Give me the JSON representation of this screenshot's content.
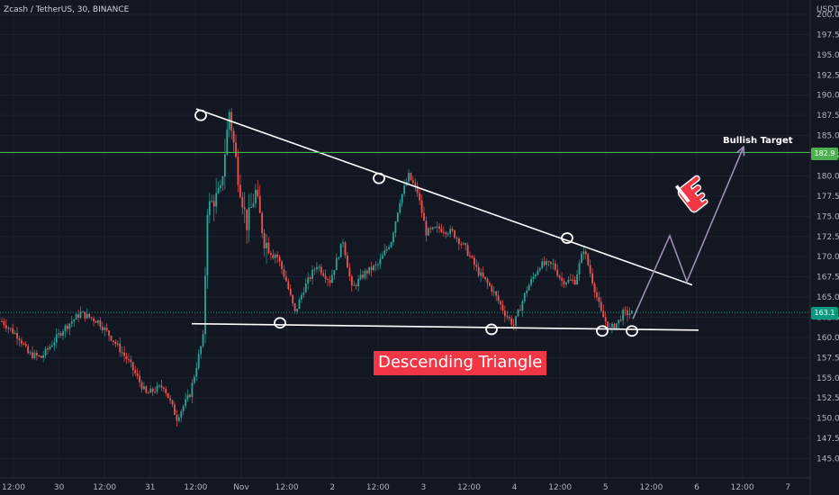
{
  "header": {
    "title": "Zcash / TetherUS, 30, BINANCE"
  },
  "axis": {
    "currency": "USDT"
  },
  "annotations": {
    "pattern": "Descending Triangle",
    "target": "Bullish Target",
    "resistance_price": "182.9",
    "current_price": "163.1"
  },
  "colors": {
    "background": "#131722",
    "up": "#26a69a",
    "down": "#ef5350",
    "resistance": "#4caf50",
    "trendline": "#ffffff",
    "projection": "#9c8fb5",
    "pattern_bg": "#f23645"
  },
  "icons": {
    "pointer": "pointing-hand-icon"
  },
  "chart_data": {
    "type": "candlestick",
    "title": "Zcash / TetherUS, 30, BINANCE",
    "ylim": [
      143.5,
      200.2
    ],
    "y_ticks": [
      "200.0",
      "197.5",
      "195.0",
      "192.5",
      "190.0",
      "187.5",
      "185.0",
      "182.5",
      "180.0",
      "177.5",
      "175.0",
      "172.5",
      "170.0",
      "167.5",
      "165.0",
      "162.5",
      "160.0",
      "157.5",
      "155.0",
      "152.5",
      "150.0",
      "147.5",
      "145.0"
    ],
    "x_ticks": [
      "12:00",
      "30",
      "12:00",
      "31",
      "12:00",
      "Nov",
      "12:00",
      "2",
      "12:00",
      "3",
      "12:00",
      "4",
      "12:00",
      "5",
      "12:00",
      "6",
      "12:00",
      "7"
    ],
    "anchors": [
      [
        0,
        162
      ],
      [
        8,
        160
      ],
      [
        12,
        158
      ],
      [
        18,
        157.5
      ],
      [
        28,
        161
      ],
      [
        36,
        163
      ],
      [
        44,
        162
      ],
      [
        50,
        160
      ],
      [
        58,
        157
      ],
      [
        66,
        153
      ],
      [
        74,
        154
      ],
      [
        80,
        150
      ],
      [
        86,
        153
      ],
      [
        92,
        160
      ],
      [
        94,
        176
      ],
      [
        100,
        178
      ],
      [
        104,
        188
      ],
      [
        108,
        180
      ],
      [
        112,
        174
      ],
      [
        116,
        178
      ],
      [
        120,
        172
      ],
      [
        126,
        170
      ],
      [
        130,
        167
      ],
      [
        134,
        163
      ],
      [
        138,
        166
      ],
      [
        144,
        169
      ],
      [
        150,
        167
      ],
      [
        156,
        172
      ],
      [
        160,
        166
      ],
      [
        166,
        168
      ],
      [
        172,
        169
      ],
      [
        178,
        172
      ],
      [
        182,
        177
      ],
      [
        186,
        180
      ],
      [
        190,
        178
      ],
      [
        194,
        173
      ],
      [
        200,
        173.5
      ],
      [
        206,
        173
      ],
      [
        212,
        171
      ],
      [
        218,
        168
      ],
      [
        224,
        166
      ],
      [
        230,
        163
      ],
      [
        234,
        161.5
      ],
      [
        240,
        166
      ],
      [
        246,
        169
      ],
      [
        252,
        169
      ],
      [
        256,
        167
      ],
      [
        262,
        167
      ],
      [
        266,
        171
      ],
      [
        270,
        167
      ],
      [
        274,
        163
      ],
      [
        278,
        161
      ],
      [
        282,
        162
      ],
      [
        284,
        163
      ],
      [
        288,
        163
      ]
    ],
    "trendlines": [
      {
        "name": "descending resistance",
        "points": [
          [
            218,
            188.3
          ],
          [
            769,
            166.5
          ]
        ]
      },
      {
        "name": "support",
        "points": [
          [
            213,
            161.7
          ],
          [
            776,
            160.9
          ]
        ]
      },
      {
        "name": "resistance level",
        "points": [
          [
            0,
            182.9
          ],
          [
            932,
            182.9
          ]
        ]
      }
    ],
    "touch_points": [
      [
        223,
        187.5
      ],
      [
        421,
        179.7
      ],
      [
        630,
        172.3
      ],
      [
        311,
        161.8
      ],
      [
        546,
        161
      ],
      [
        669,
        160.8
      ],
      [
        702,
        160.8
      ]
    ],
    "projection": [
      [
        703,
        162.3
      ],
      [
        744,
        172.6
      ],
      [
        763,
        166.9
      ],
      [
        826,
        183.6
      ]
    ]
  }
}
